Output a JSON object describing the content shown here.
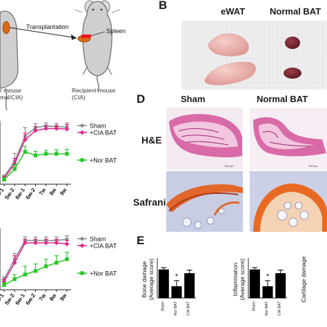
{
  "panelA": {
    "transplantation": "Transplantation",
    "spleen": "Spleen",
    "donor_line1": "r mouse",
    "donor_line2": "mal/CIA)",
    "recipient_line1": "Recipient mouse",
    "recipient_line2": "(CIA)"
  },
  "panelB": {
    "letter": "B",
    "ewat": "eWAT",
    "normal_bat": "Normal BAT"
  },
  "panelD": {
    "letter": "D",
    "col_sham": "Sham",
    "col_normal_bat": "Normal BAT",
    "row_he": "H&E",
    "row_safranin": "Safranin O"
  },
  "panelE": {
    "letter": "E",
    "asterisk": "*"
  },
  "colors": {
    "sham": "#8a8a8a",
    "cia_bat": "#e0288c",
    "nor_bat": "#28c828",
    "bar": "#000000"
  },
  "chart_data": [
    {
      "type": "line",
      "categories": [
        "5w-1",
        "5w-2",
        "6w-1",
        "6w-2",
        "7w",
        "8w",
        "9w"
      ],
      "series": [
        {
          "name": "Sham",
          "values": [
            1.5,
            4.5,
            9.5,
            11.2,
            11.5,
            11.4,
            11.3
          ],
          "errors": [
            0.3,
            1.6,
            1.7,
            0.8,
            0.6,
            0.6,
            0.8
          ]
        },
        {
          "name": "+CIA BAT",
          "values": [
            1.2,
            4.0,
            8.8,
            10.6,
            11.0,
            11.0,
            10.9
          ],
          "errors": [
            0.3,
            1.1,
            1.3,
            0.8,
            0.6,
            0.6,
            0.9
          ]
        },
        {
          "name": "+Nor BAT",
          "values": [
            0.9,
            3.0,
            6.4,
            5.7,
            6.0,
            6.0,
            6.0
          ],
          "errors": [
            0.4,
            0.9,
            1.1,
            0.8,
            0.7,
            0.8,
            0.9
          ]
        }
      ],
      "ylim": [
        0,
        12
      ]
    },
    {
      "type": "line",
      "categories": [
        "5w-1",
        "5w-2",
        "6w-1",
        "6w-2",
        "7w",
        "8w",
        "9w"
      ],
      "series": [
        {
          "name": "Sham",
          "values": [
            0.9,
            2.6,
            4.2,
            4.2,
            4.2,
            4.2,
            4.3
          ],
          "errors": [
            0.2,
            0.5,
            0.3,
            0.3,
            0.3,
            0.3,
            0.3
          ]
        },
        {
          "name": "+CIA BAT",
          "values": [
            0.7,
            2.3,
            4.0,
            4.0,
            4.0,
            4.0,
            3.9
          ],
          "errors": [
            0.2,
            0.6,
            0.3,
            0.3,
            0.3,
            0.3,
            0.3
          ]
        },
        {
          "name": "+Nor BAT",
          "values": [
            0.4,
            0.9,
            1.3,
            1.6,
            2.0,
            2.3,
            2.6
          ],
          "errors": [
            0.2,
            0.4,
            0.7,
            0.6,
            0.6,
            0.6,
            0.6
          ]
        }
      ],
      "ylim": [
        0,
        5
      ]
    },
    {
      "type": "bar",
      "categories": [
        "Sham",
        "Nor BAT",
        "CIA BAT"
      ],
      "values": [
        4.6,
        1.9,
        4.0
      ],
      "errors": [
        0.3,
        0.9,
        0.5
      ],
      "ylabel": "Bone damage\n(Average score)",
      "ylim": [
        0,
        6
      ]
    },
    {
      "type": "bar",
      "categories": [
        "Sham",
        "Nor BAT",
        "CIA BAT"
      ],
      "values": [
        4.6,
        1.9,
        4.0
      ],
      "errors": [
        0.3,
        0.9,
        0.5
      ],
      "ylabel": "Inflammation\n(Average score)",
      "ylim": [
        0,
        6
      ]
    },
    {
      "type": "bar",
      "categories": [],
      "values": [],
      "ylabel": "Cartilage damage"
    }
  ]
}
